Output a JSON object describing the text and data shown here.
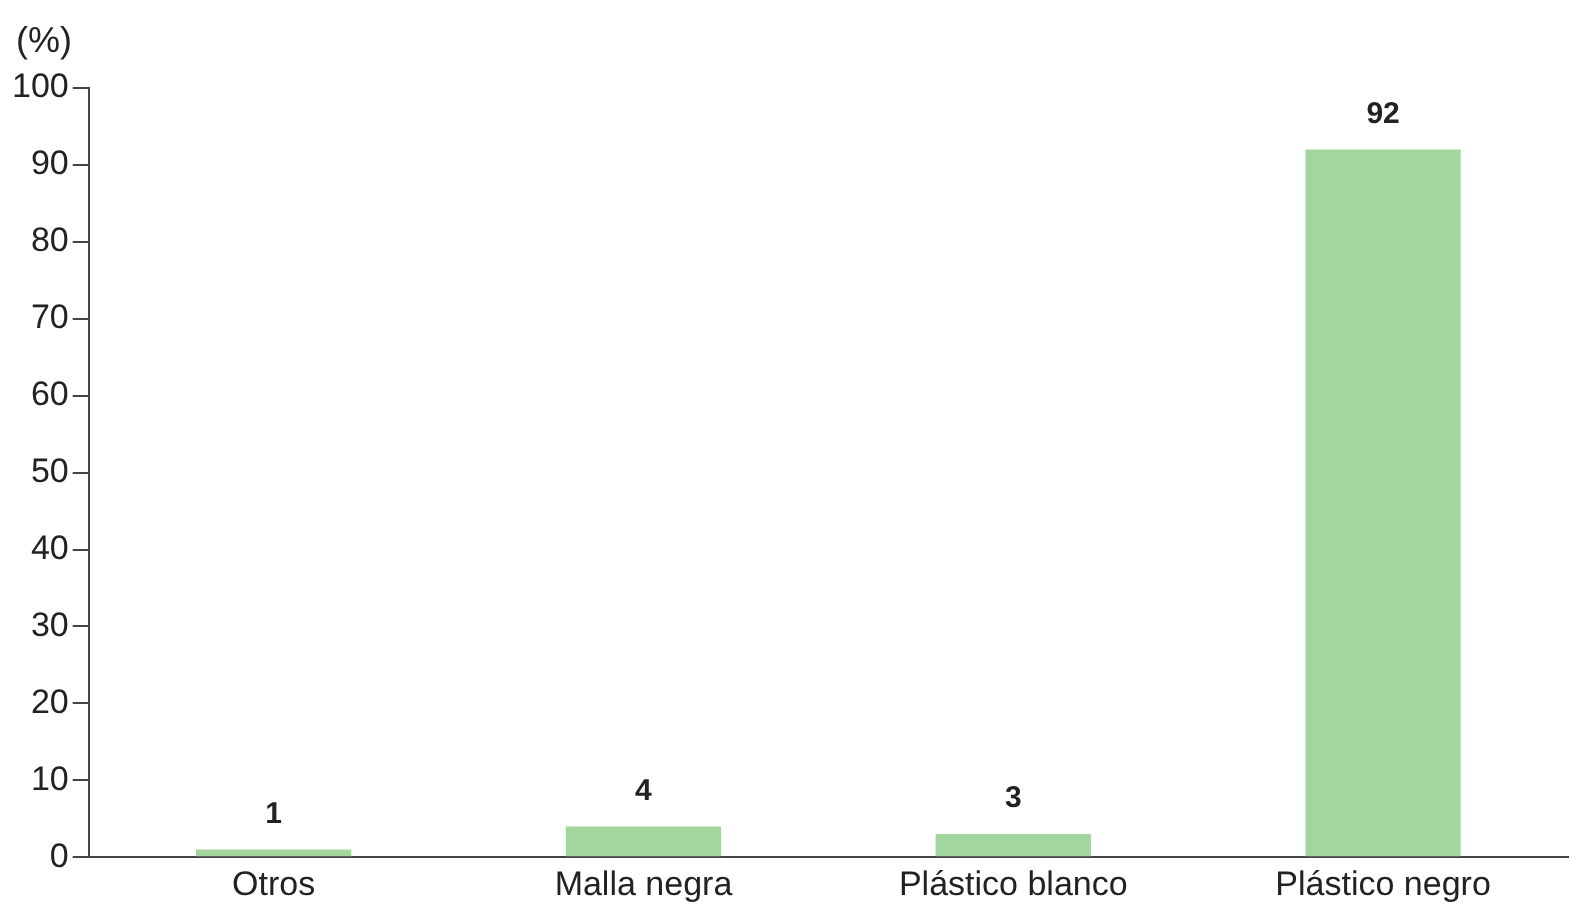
{
  "chart_data": {
    "type": "bar",
    "ylabel": "(%)",
    "categories": [
      "Otros",
      "Malla negra",
      "Plástico blanco",
      "Plástico negro"
    ],
    "values": [
      1,
      4,
      3,
      92
    ],
    "color": "#a3d69d",
    "ylim": [
      0,
      100
    ],
    "yticks": [
      0,
      10,
      20,
      30,
      40,
      50,
      60,
      70,
      80,
      90,
      100
    ],
    "grid": false,
    "legend": false,
    "data_labels": true
  }
}
